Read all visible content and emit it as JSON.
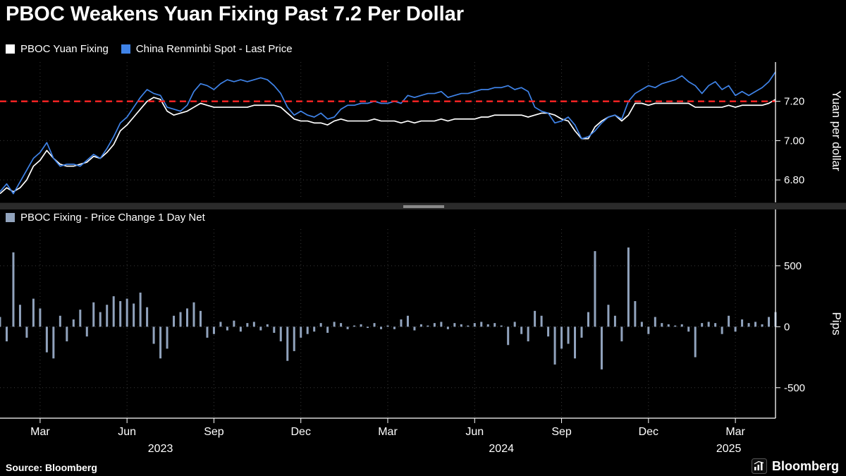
{
  "title": "PBOC Weakens Yuan Fixing Past 7.2 Per Dollar",
  "source": "Source: Bloomberg",
  "logo": {
    "text": "Bloomberg"
  },
  "colors": {
    "background": "#000000",
    "fixing_line": "#ffffff",
    "spot_line": "#3f83e8",
    "bars": "#91a3bd",
    "threshold": "#ff2424",
    "axis": "#ffffff",
    "grid": "#3a3a3a"
  },
  "x_axis": {
    "n": 117,
    "month_ticks": [
      {
        "label": "Mar",
        "i": 6
      },
      {
        "label": "Jun",
        "i": 19
      },
      {
        "label": "Sep",
        "i": 32
      },
      {
        "label": "Dec",
        "i": 45
      },
      {
        "label": "Mar",
        "i": 58
      },
      {
        "label": "Jun",
        "i": 71
      },
      {
        "label": "Sep",
        "i": 84
      },
      {
        "label": "Dec",
        "i": 97
      },
      {
        "label": "Mar",
        "i": 110
      }
    ],
    "year_labels": [
      {
        "label": "2023",
        "i": 24
      },
      {
        "label": "2024",
        "i": 75
      },
      {
        "label": "2025",
        "i": 109
      }
    ]
  },
  "chart_data": [
    {
      "type": "line",
      "panel": "top",
      "ylabel": "Yuan per dollar",
      "ylim": [
        6.7,
        7.4
      ],
      "yticks": [
        {
          "v": 6.8,
          "label": "6.80"
        },
        {
          "v": 7.0,
          "label": "7.00"
        },
        {
          "v": 7.2,
          "label": "7.20"
        }
      ],
      "ref_line": {
        "v": 7.2,
        "style": "dashed",
        "color": "#ff2424"
      },
      "series": [
        {
          "name": "PBOC Yuan Fixing",
          "color": "#ffffff",
          "values": [
            6.73,
            6.76,
            6.74,
            6.76,
            6.8,
            6.87,
            6.9,
            6.95,
            6.91,
            6.88,
            6.87,
            6.87,
            6.88,
            6.89,
            6.92,
            6.91,
            6.94,
            6.98,
            7.05,
            7.08,
            7.12,
            7.16,
            7.2,
            7.22,
            7.21,
            7.15,
            7.13,
            7.14,
            7.15,
            7.17,
            7.19,
            7.18,
            7.17,
            7.17,
            7.17,
            7.17,
            7.17,
            7.17,
            7.18,
            7.18,
            7.18,
            7.18,
            7.17,
            7.14,
            7.11,
            7.1,
            7.1,
            7.09,
            7.09,
            7.08,
            7.1,
            7.11,
            7.1,
            7.1,
            7.1,
            7.1,
            7.11,
            7.1,
            7.1,
            7.1,
            7.09,
            7.1,
            7.09,
            7.1,
            7.1,
            7.1,
            7.11,
            7.1,
            7.11,
            7.11,
            7.11,
            7.11,
            7.12,
            7.12,
            7.13,
            7.13,
            7.13,
            7.13,
            7.13,
            7.12,
            7.13,
            7.14,
            7.14,
            7.13,
            7.11,
            7.1,
            7.05,
            7.01,
            7.01,
            7.07,
            7.1,
            7.12,
            7.13,
            7.1,
            7.13,
            7.19,
            7.19,
            7.18,
            7.19,
            7.19,
            7.19,
            7.19,
            7.19,
            7.19,
            7.17,
            7.17,
            7.17,
            7.17,
            7.17,
            7.18,
            7.17,
            7.18,
            7.18,
            7.18,
            7.18,
            7.19,
            7.21
          ]
        },
        {
          "name": "China Renminbi Spot - Last Price",
          "color": "#3f83e8",
          "values": [
            6.74,
            6.78,
            6.73,
            6.79,
            6.85,
            6.91,
            6.94,
            6.99,
            6.91,
            6.87,
            6.88,
            6.88,
            6.87,
            6.9,
            6.93,
            6.91,
            6.96,
            7.02,
            7.09,
            7.12,
            7.17,
            7.22,
            7.26,
            7.24,
            7.23,
            7.17,
            7.16,
            7.15,
            7.18,
            7.25,
            7.29,
            7.28,
            7.26,
            7.29,
            7.31,
            7.3,
            7.31,
            7.3,
            7.31,
            7.32,
            7.31,
            7.28,
            7.24,
            7.17,
            7.13,
            7.15,
            7.13,
            7.12,
            7.14,
            7.11,
            7.12,
            7.16,
            7.18,
            7.18,
            7.19,
            7.19,
            7.2,
            7.19,
            7.19,
            7.2,
            7.19,
            7.23,
            7.22,
            7.23,
            7.24,
            7.24,
            7.25,
            7.22,
            7.23,
            7.24,
            7.24,
            7.25,
            7.26,
            7.26,
            7.27,
            7.27,
            7.28,
            7.26,
            7.27,
            7.25,
            7.17,
            7.15,
            7.14,
            7.09,
            7.1,
            7.12,
            7.08,
            7.01,
            7.02,
            7.05,
            7.09,
            7.12,
            7.13,
            7.11,
            7.2,
            7.24,
            7.26,
            7.28,
            7.27,
            7.29,
            7.3,
            7.31,
            7.33,
            7.3,
            7.28,
            7.24,
            7.28,
            7.3,
            7.26,
            7.28,
            7.23,
            7.25,
            7.23,
            7.25,
            7.27,
            7.3,
            7.35
          ]
        }
      ]
    },
    {
      "type": "bar",
      "panel": "bottom",
      "ylabel": "Pips",
      "ylim": [
        -750,
        800
      ],
      "yticks": [
        {
          "v": 500,
          "label": "500"
        },
        {
          "v": 0,
          "label": "0"
        },
        {
          "v": -500,
          "label": "-500"
        }
      ],
      "series": [
        {
          "name": "PBOC Fixing - Price Change 1 Day Net",
          "color": "#91a3bd",
          "values": [
            80,
            -120,
            610,
            180,
            -90,
            230,
            150,
            -210,
            -260,
            90,
            -120,
            60,
            140,
            -80,
            200,
            120,
            180,
            250,
            210,
            230,
            190,
            280,
            160,
            -140,
            -260,
            -180,
            90,
            120,
            150,
            200,
            130,
            -90,
            -60,
            40,
            -30,
            50,
            -40,
            30,
            40,
            -30,
            20,
            -50,
            -120,
            -280,
            -200,
            -90,
            -60,
            -40,
            30,
            -50,
            40,
            30,
            -20,
            10,
            20,
            -10,
            30,
            -20,
            10,
            -20,
            60,
            90,
            -30,
            20,
            10,
            30,
            40,
            -20,
            30,
            20,
            10,
            30,
            40,
            20,
            30,
            10,
            -150,
            40,
            -60,
            -120,
            130,
            90,
            -80,
            -310,
            -180,
            -140,
            -260,
            -90,
            120,
            620,
            -350,
            180,
            90,
            -120,
            650,
            210,
            40,
            -60,
            80,
            30,
            20,
            10,
            20,
            -40,
            -250,
            30,
            40,
            30,
            -60,
            90,
            -40,
            60,
            30,
            40,
            20,
            80,
            120
          ]
        }
      ]
    }
  ]
}
